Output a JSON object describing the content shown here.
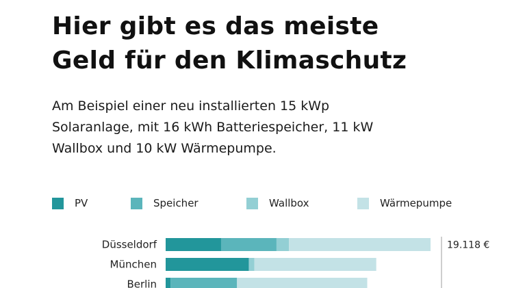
{
  "header": {
    "title_line1": "Hier gibt es das meiste",
    "title_line2": "Geld für den Klimaschutz",
    "subtitle_line1": "Am Beispiel einer neu installierten 15 kWp",
    "subtitle_line2": "Solaranlage, mit 16 kWh Batteriespeicher, 11 kW",
    "subtitle_line3": "Wallbox und 10 kW Wärmepumpe."
  },
  "chart_data": {
    "type": "bar",
    "orientation": "horizontal",
    "stacked": true,
    "categories": [
      "Düsseldorf",
      "München",
      "Berlin"
    ],
    "series": [
      {
        "name": "PV",
        "color": "#22969b",
        "values": [
          4000,
          6000,
          350
        ]
      },
      {
        "name": "Speicher",
        "color": "#5bb5bb",
        "values": [
          4000,
          0,
          4800
        ]
      },
      {
        "name": "Wallbox",
        "color": "#93cfd4",
        "values": [
          900,
          400,
          0
        ]
      },
      {
        "name": "Wärmepumpe",
        "color": "#c3e2e6",
        "values": [
          10218,
          8800,
          9400
        ]
      }
    ],
    "xlim": [
      0,
      19118
    ],
    "annotations": [
      {
        "category": "Düsseldorf",
        "text": "19.118 €"
      }
    ],
    "legend_position": "top",
    "grid": false
  }
}
